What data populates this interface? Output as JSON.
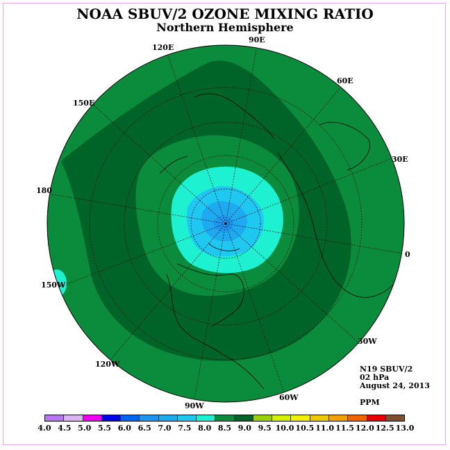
{
  "title": "NOAA SBUV/2 OZONE MIXING RATIO",
  "subtitle": "Northern Hemisphere",
  "longitude_labels": [
    "120E",
    "90E",
    "60E",
    "150E",
    "30E",
    "180",
    "0",
    "150W",
    "30W",
    "120W",
    "60W",
    "90W"
  ],
  "info": {
    "satellite": "N19 SBUV/2",
    "level": "02 hPa",
    "date": "August 24, 2013",
    "unit": "PPM"
  },
  "colorbar": {
    "tick_labels": [
      "4.0",
      "4.5",
      "5.0",
      "5.5",
      "6.0",
      "6.5",
      "7.0",
      "7.5",
      "8.0",
      "8.5",
      "9.0",
      "9.5",
      "10.0",
      "10.5",
      "11.0",
      "11.5",
      "12.0",
      "12.5",
      "13.0"
    ],
    "colors": [
      "#b678f0",
      "#dcb4f0",
      "#f000f0",
      "#0000e6",
      "#0064f0",
      "#1e96f0",
      "#1eaaf0",
      "#1ec8f0",
      "#1ef0d2",
      "#0a8c3c",
      "#006428",
      "#9ad20a",
      "#d2f000",
      "#f0f000",
      "#f0c800",
      "#f0a000",
      "#f06400",
      "#e60000",
      "#7d5032"
    ]
  },
  "map_colors": {
    "bg": "#0a8c3c",
    "dark": "#006428",
    "light_green": "#0f9646",
    "cyan": "#1ef0d2",
    "blue_light": "#1ec8f0",
    "blue_mid": "#1eaaf0",
    "blue_dark": "#1e96f0"
  }
}
